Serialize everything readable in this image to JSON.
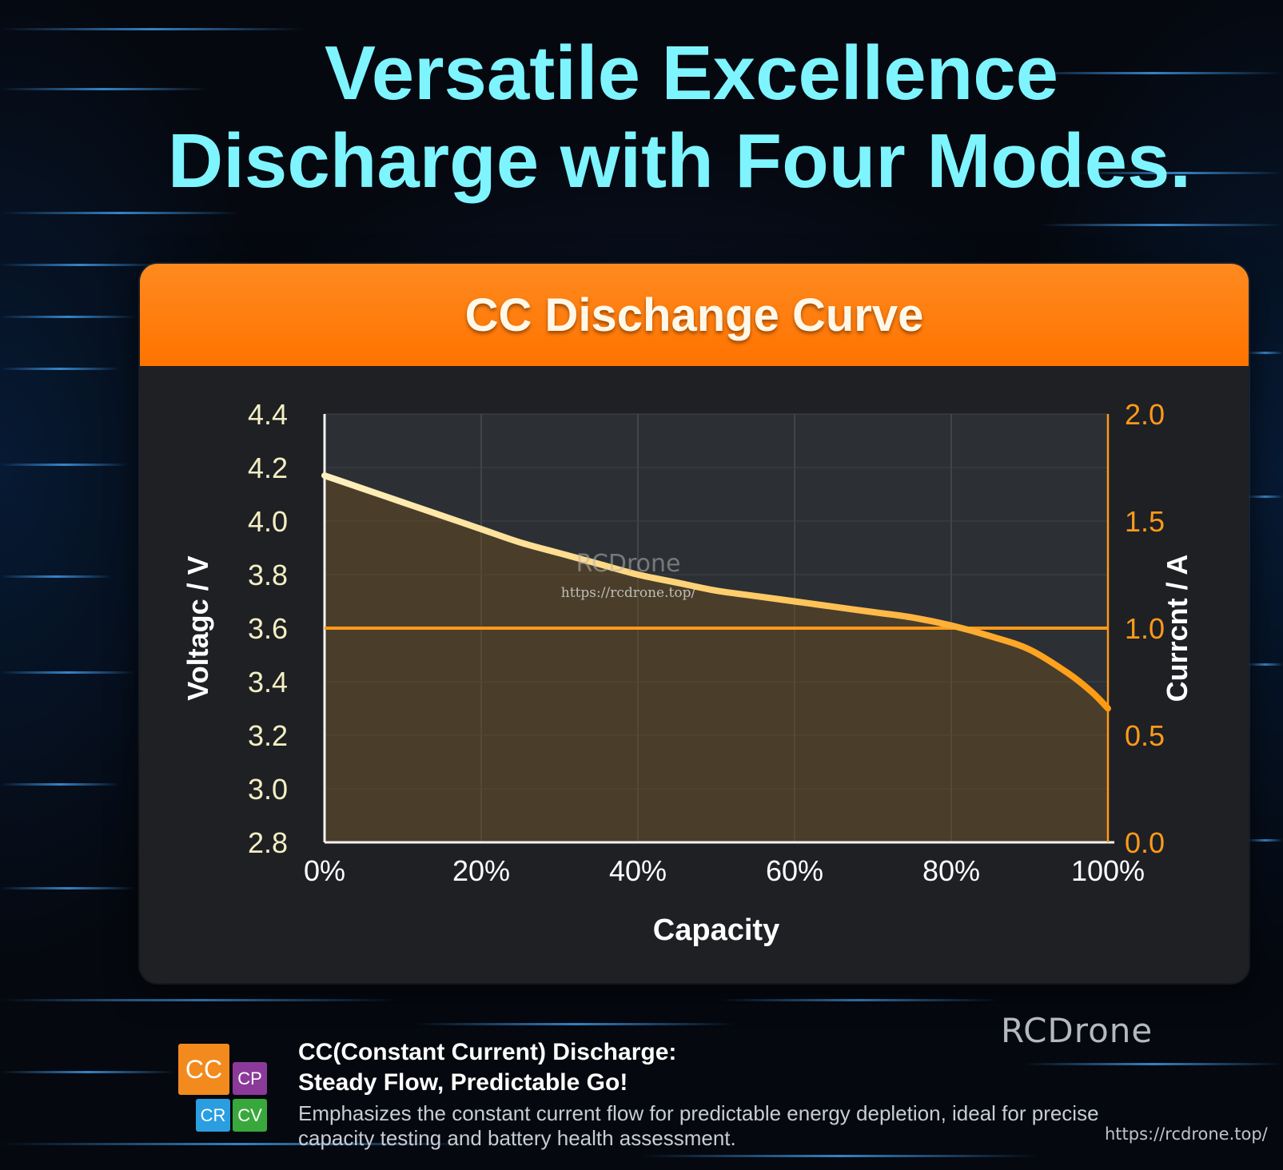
{
  "title": {
    "line1": "Versatile Excellence",
    "line2": "Discharge with Four Modes."
  },
  "panel_title": "CC Dischange Curve",
  "chart_data": {
    "type": "line",
    "title": "CC Dischange Curve",
    "xlabel": "Capacity",
    "ylabel": "Voltagc / V",
    "y2label": "Currcnt / A",
    "x_ticks": [
      "0%",
      "20%",
      "40%",
      "60%",
      "80%",
      "100%"
    ],
    "xlim": [
      0,
      100
    ],
    "y_ticks": [
      "4.4",
      "4.2",
      "4.0",
      "3.8",
      "3.6",
      "3.4",
      "3.2",
      "3.0",
      "2.8"
    ],
    "ylim": [
      2.8,
      4.4
    ],
    "y2_ticks": [
      "2.0",
      "1.5",
      "1.0",
      "0.5",
      "0.0"
    ],
    "y2lim": [
      0,
      2
    ],
    "grid": true,
    "series": [
      {
        "axis": "left",
        "color": "#ffd060",
        "x": [
          0,
          5,
          10,
          15,
          20,
          25,
          30,
          35,
          40,
          45,
          50,
          55,
          60,
          65,
          70,
          75,
          80,
          85,
          90,
          95,
          98,
          100
        ],
        "y": [
          4.17,
          4.12,
          4.07,
          4.02,
          3.97,
          3.92,
          3.88,
          3.84,
          3.8,
          3.77,
          3.74,
          3.72,
          3.7,
          3.68,
          3.66,
          3.64,
          3.61,
          3.57,
          3.52,
          3.43,
          3.36,
          3.3
        ]
      },
      {
        "axis": "right",
        "color": "#ff9a1a",
        "x": [
          0,
          100
        ],
        "y": [
          1.0,
          1.0
        ]
      }
    ],
    "watermark": {
      "text": "RCDrone",
      "url": "https://rcdrone.top/"
    }
  },
  "caption": {
    "heading_line1": "CC(Constant Current) Discharge:",
    "heading_line2": "Steady Flow, Predictable Go!",
    "description": "Emphasizes the constant current flow for predictable energy depletion, ideal for precise capacity testing and battery health assessment."
  },
  "modes": [
    "CC",
    "CP",
    "CR",
    "CV"
  ],
  "watermark": {
    "brand": "RCDrone",
    "url": "https://rcdrone.top/"
  }
}
